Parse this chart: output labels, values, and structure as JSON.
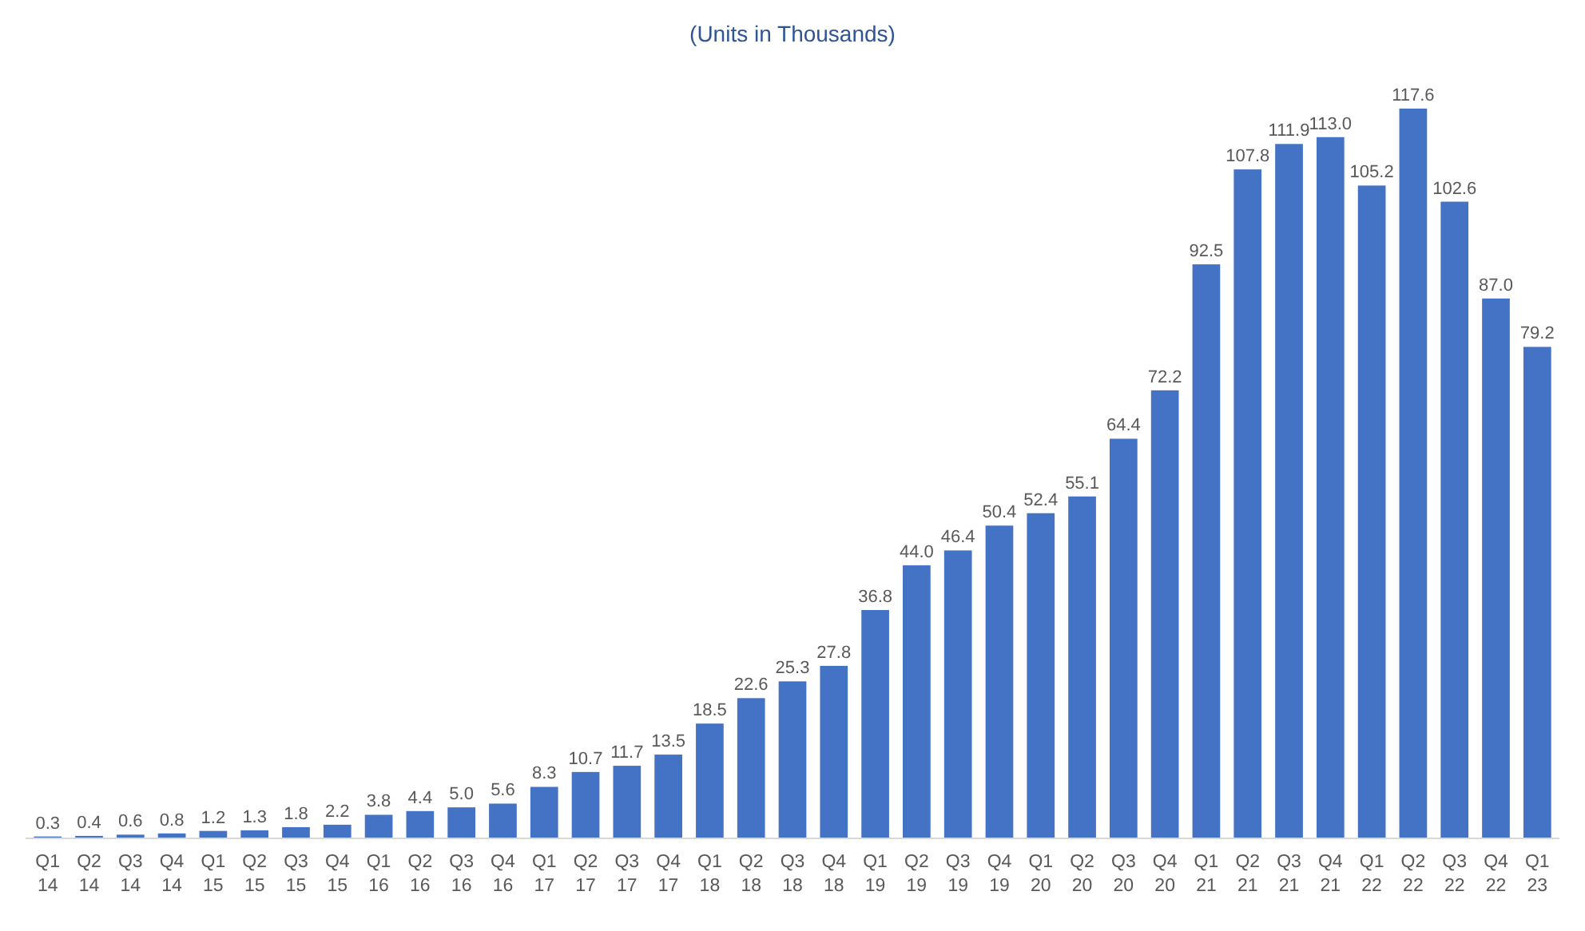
{
  "chart_data": {
    "type": "bar",
    "subtitle": "(Units in Thousands)",
    "color": "#4472c4",
    "categories": [
      "Q1 14",
      "Q2 14",
      "Q3 14",
      "Q4 14",
      "Q1 15",
      "Q2 15",
      "Q3 15",
      "Q4 15",
      "Q1 16",
      "Q2 16",
      "Q3 16",
      "Q4 16",
      "Q1 17",
      "Q2 17",
      "Q3 17",
      "Q4 17",
      "Q1 18",
      "Q2 18",
      "Q3 18",
      "Q4 18",
      "Q1 19",
      "Q2 19",
      "Q3 19",
      "Q4 19",
      "Q1 20",
      "Q2 20",
      "Q3 20",
      "Q4 20",
      "Q1 21",
      "Q2 21",
      "Q3 21",
      "Q4 21",
      "Q1 22",
      "Q2 22",
      "Q3 22",
      "Q4 22",
      "Q1 23"
    ],
    "values": [
      0.3,
      0.4,
      0.6,
      0.8,
      1.2,
      1.3,
      1.8,
      2.2,
      3.8,
      4.4,
      5.0,
      5.6,
      8.3,
      10.7,
      11.7,
      13.5,
      18.5,
      22.6,
      25.3,
      27.8,
      36.8,
      44.0,
      46.4,
      50.4,
      52.4,
      55.1,
      64.4,
      72.2,
      92.5,
      107.8,
      111.9,
      113.0,
      105.2,
      117.6,
      102.6,
      87.0,
      79.2
    ],
    "value_labels": [
      "0.3",
      "0.4",
      "0.6",
      "0.8",
      "1.2",
      "1.3",
      "1.8",
      "2.2",
      "3.8",
      "4.4",
      "5.0",
      "5.6",
      "8.3",
      "10.7",
      "11.7",
      "13.5",
      "18.5",
      "22.6",
      "25.3",
      "27.8",
      "36.8",
      "44.0",
      "46.4",
      "50.4",
      "52.4",
      "55.1",
      "64.4",
      "72.2",
      "92.5",
      "107.8",
      "111.9",
      "113.0",
      "105.2",
      "117.6",
      "102.6",
      "87.0",
      "79.2"
    ]
  }
}
